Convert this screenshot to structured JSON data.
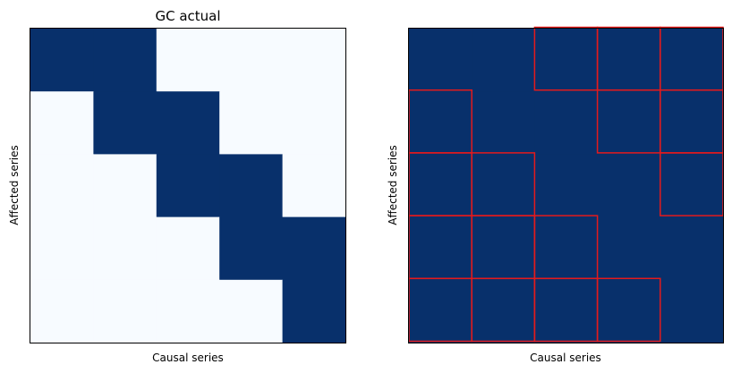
{
  "chart_data": [
    {
      "type": "heatmap",
      "title": "GC actual",
      "xlabel": "Causal series",
      "ylabel": "Affected series",
      "rows": 5,
      "cols": 5,
      "colormap": "Blues",
      "grid": false,
      "xticks": false,
      "yticks": false,
      "values": [
        [
          1,
          1,
          0,
          0,
          0
        ],
        [
          0,
          1,
          1,
          0,
          0
        ],
        [
          0,
          0,
          1,
          1,
          0
        ],
        [
          0,
          0,
          0,
          1,
          1
        ],
        [
          0,
          0,
          0,
          0,
          1
        ]
      ]
    },
    {
      "type": "heatmap",
      "title": "",
      "xlabel": "Causal series",
      "ylabel": "Affected series",
      "rows": 5,
      "cols": 5,
      "colormap": "Blues",
      "grid": false,
      "xticks": false,
      "yticks": false,
      "values": [
        [
          1,
          1,
          1,
          1,
          1
        ],
        [
          1,
          1,
          1,
          1,
          1
        ],
        [
          1,
          1,
          1,
          1,
          1
        ],
        [
          1,
          1,
          1,
          1,
          1
        ],
        [
          1,
          1,
          1,
          1,
          1
        ]
      ],
      "highlight_color": "#e41a1c",
      "highlighted_cells": [
        [
          0,
          2
        ],
        [
          0,
          3
        ],
        [
          0,
          4
        ],
        [
          1,
          0
        ],
        [
          1,
          3
        ],
        [
          1,
          4
        ],
        [
          2,
          0
        ],
        [
          2,
          1
        ],
        [
          2,
          4
        ],
        [
          3,
          0
        ],
        [
          3,
          1
        ],
        [
          3,
          2
        ],
        [
          4,
          0
        ],
        [
          4,
          1
        ],
        [
          4,
          2
        ],
        [
          4,
          3
        ]
      ]
    }
  ],
  "colors": {
    "high": "#08306b",
    "low": "#f7fbff",
    "frame": "#000000"
  }
}
